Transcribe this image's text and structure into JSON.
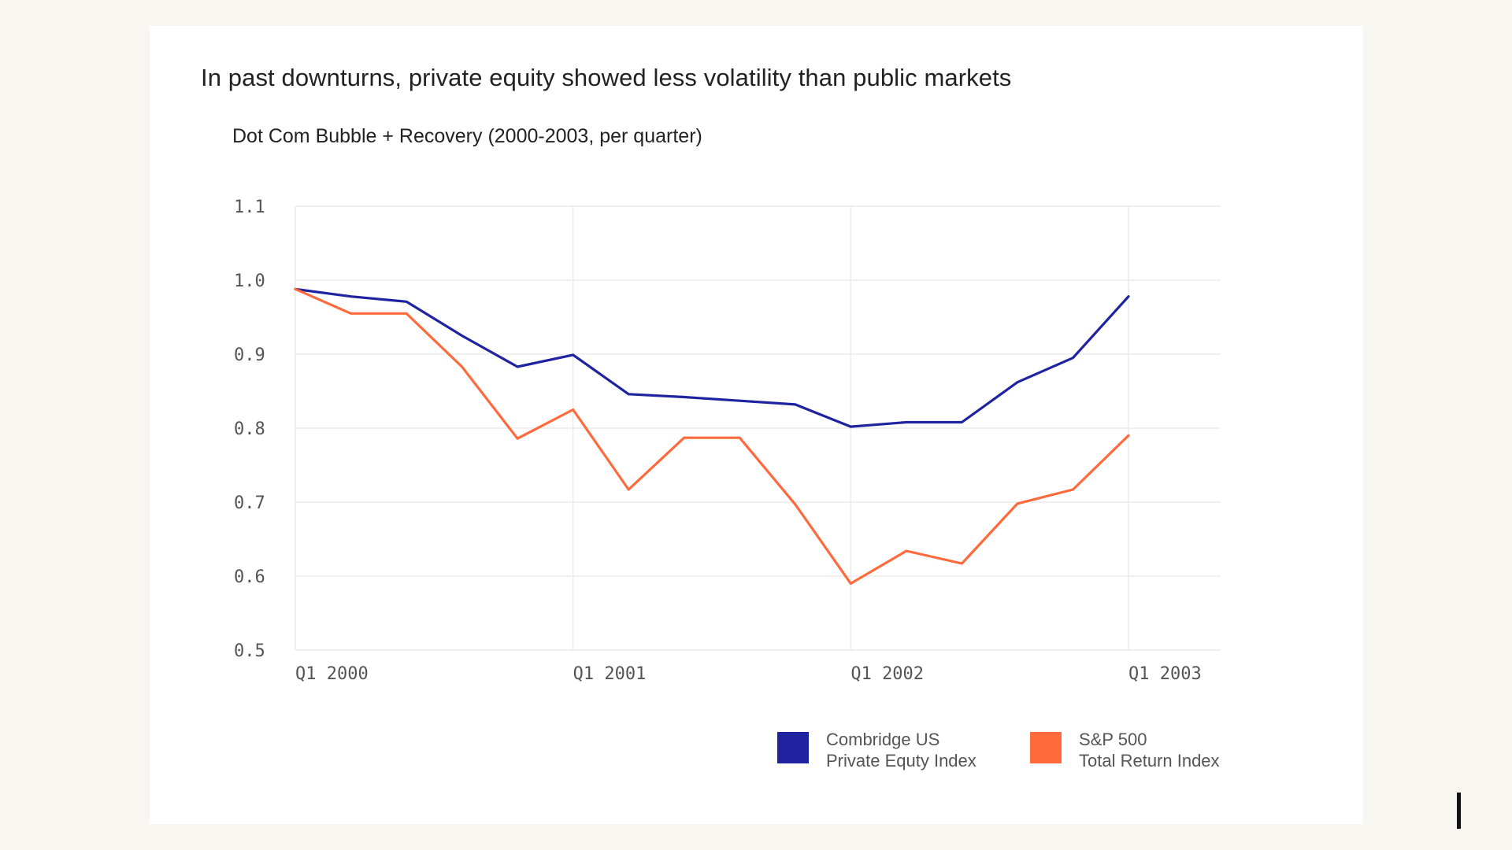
{
  "title": "In past downturns, private equity showed less volatility than public markets",
  "subtitle": "Dot Com Bubble + Recovery (2000-2003, per quarter)",
  "colors": {
    "background": "#f8f6f1",
    "panel": "#ffffff",
    "grid": "#ebebeb",
    "private_equity": "#1f23a0",
    "sp500": "#ff6a3d"
  },
  "chart_data": {
    "type": "line",
    "title": "In past downturns, private equity showed less volatility than public markets",
    "subtitle": "Dot Com Bubble + Recovery (2000-2003, per quarter)",
    "xlabel": "",
    "ylabel": "",
    "x": [
      2000.0,
      2000.25,
      2000.5,
      2000.75,
      2001.0,
      2001.25,
      2001.5,
      2001.75,
      2002.0,
      2002.25,
      2002.5,
      2002.75,
      2003.0
    ],
    "xlim": [
      2000.0,
      2003.33
    ],
    "ylim": [
      0.5,
      1.1
    ],
    "x_ticks": [
      {
        "value": 2000.0,
        "label": "Q1 2000"
      },
      {
        "value": 2001.0,
        "label": "Q1 2001"
      },
      {
        "value": 2002.0,
        "label": "Q1 2002"
      },
      {
        "value": 2003.0,
        "label": "Q1 2003"
      }
    ],
    "y_ticks": [
      {
        "value": 1.1,
        "label": "1.1"
      },
      {
        "value": 1.0,
        "label": "1.0"
      },
      {
        "value": 0.9,
        "label": "0.9"
      },
      {
        "value": 0.8,
        "label": "0.8"
      },
      {
        "value": 0.7,
        "label": "0.7"
      },
      {
        "value": 0.6,
        "label": "0.6"
      },
      {
        "value": 0.5,
        "label": "0.5"
      }
    ],
    "grid": true,
    "legend_position": "bottom-right",
    "series": [
      {
        "name": "Combridge US Private Equty Index",
        "legend_lines": [
          "Combridge US",
          "Private Equty Index"
        ],
        "color": "#1f23a0",
        "x": [
          2000.0,
          2000.2,
          2000.4,
          2000.6,
          2000.8,
          2001.0,
          2001.2,
          2001.4,
          2001.6,
          2001.8,
          2002.0,
          2002.2,
          2002.4,
          2002.6,
          2002.8,
          2003.0
        ],
        "values": [
          0.988,
          0.978,
          0.971,
          0.925,
          0.883,
          0.899,
          0.846,
          0.842,
          0.837,
          0.832,
          0.802,
          0.808,
          0.808,
          0.862,
          0.895,
          0.978
        ]
      },
      {
        "name": "S&P 500 Total Return Index",
        "legend_lines": [
          "S&P 500",
          "Total Return Index"
        ],
        "color": "#ff6a3d",
        "x": [
          2000.0,
          2000.2,
          2000.4,
          2000.6,
          2000.8,
          2001.0,
          2001.2,
          2001.4,
          2001.6,
          2001.8,
          2002.0,
          2002.2,
          2002.4,
          2002.6,
          2002.8,
          2003.0
        ],
        "values": [
          0.988,
          0.955,
          0.955,
          0.883,
          0.786,
          0.825,
          0.717,
          0.787,
          0.787,
          0.697,
          0.59,
          0.634,
          0.617,
          0.698,
          0.717,
          0.79
        ]
      }
    ]
  }
}
